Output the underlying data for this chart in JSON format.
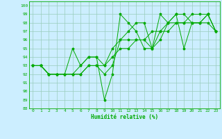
{
  "title": "",
  "xlabel": "Humidité relative (%)",
  "background_color": "#cceeff",
  "grid_color": "#99ccbb",
  "line_color": "#00aa00",
  "xlim": [
    -0.5,
    23.5
  ],
  "ylim": [
    88,
    100.5
  ],
  "yticks": [
    88,
    89,
    90,
    91,
    92,
    93,
    94,
    95,
    96,
    97,
    98,
    99,
    100
  ],
  "xticks": [
    0,
    1,
    2,
    3,
    4,
    5,
    6,
    7,
    8,
    9,
    10,
    11,
    12,
    13,
    14,
    15,
    16,
    17,
    18,
    19,
    20,
    21,
    22,
    23
  ],
  "series": [
    [
      93,
      93,
      92,
      92,
      92,
      95,
      93,
      94,
      94,
      89,
      92,
      99,
      98,
      97,
      95,
      95,
      99,
      98,
      99,
      95,
      98,
      98,
      99,
      97
    ],
    [
      93,
      93,
      92,
      92,
      92,
      92,
      92,
      93,
      93,
      92,
      93,
      96,
      96,
      96,
      96,
      95,
      97,
      97,
      98,
      98,
      98,
      98,
      98,
      97
    ],
    [
      93,
      93,
      92,
      92,
      92,
      92,
      92,
      93,
      93,
      93,
      94,
      95,
      95,
      96,
      96,
      97,
      97,
      98,
      98,
      98,
      99,
      99,
      99,
      97
    ],
    [
      93,
      93,
      92,
      92,
      92,
      92,
      93,
      94,
      94,
      93,
      95,
      96,
      97,
      98,
      98,
      95,
      96,
      98,
      99,
      99,
      98,
      98,
      99,
      97
    ]
  ]
}
